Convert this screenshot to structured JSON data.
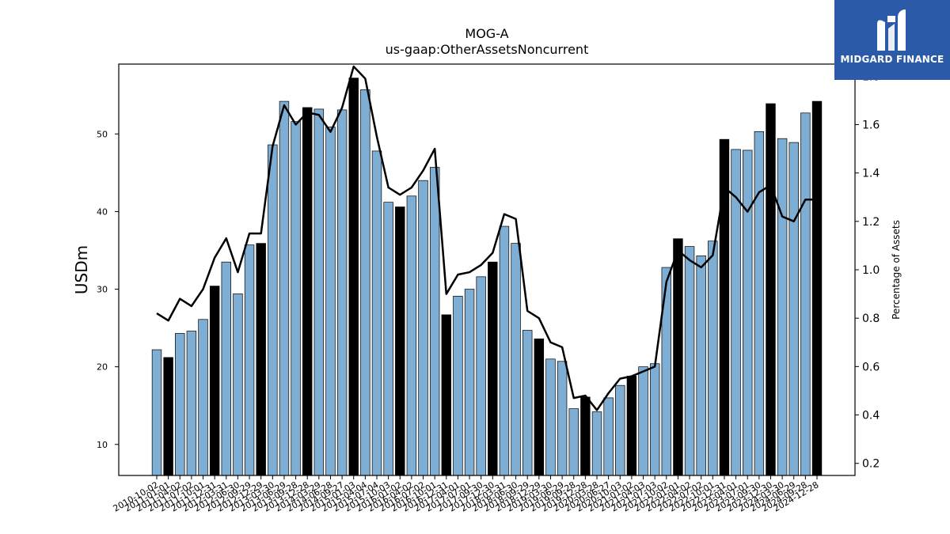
{
  "brand": {
    "name": "MIDGARD FINANCE",
    "bg_color": "#2b5aa8",
    "icon": "midgard-logo-icon"
  },
  "chart_data": {
    "type": "bar",
    "title": "MOG-A",
    "subtitle": "us-gaap:OtherAssetsNoncurrent",
    "ylabel": "USDm",
    "y2label": "Percentage of Assets",
    "ylim": [
      6,
      59
    ],
    "y2lim": [
      0.15,
      1.85
    ],
    "yticks": [
      10,
      20,
      30,
      40,
      50
    ],
    "y2ticks": [
      0.2,
      0.4,
      0.6,
      0.8,
      1.0,
      1.2,
      1.4,
      1.6,
      1.8
    ],
    "bar_color": "#7eaed3",
    "highlight_color": "#000000",
    "line_color": "#000000",
    "categories": [
      "2010-10-02",
      "2011-01-01",
      "2011-04-02",
      "2011-07-02",
      "2011-10-01",
      "2011-12-31",
      "2012-03-31",
      "2012-06-30",
      "2012-09-29",
      "2012-12-29",
      "2013-03-30",
      "2013-06-29",
      "2013-09-28",
      "2013-12-28",
      "2014-03-29",
      "2014-06-28",
      "2014-09-27",
      "2015-01-03",
      "2015-04-04",
      "2015-07-04",
      "2015-10-03",
      "2016-01-02",
      "2016-04-02",
      "2016-07-02",
      "2016-10-01",
      "2016-12-31",
      "2017-04-01",
      "2017-07-01",
      "2017-09-30",
      "2017-12-30",
      "2018-03-31",
      "2018-06-30",
      "2018-09-29",
      "2018-12-29",
      "2019-03-30",
      "2019-06-29",
      "2019-09-28",
      "2019-12-28",
      "2020-03-28",
      "2020-06-27",
      "2020-10-03",
      "2021-01-02",
      "2021-04-03",
      "2021-07-03",
      "2021-10-02",
      "2022-01-01",
      "2022-04-02",
      "2022-07-02",
      "2022-10-01",
      "2022-12-31",
      "2023-04-01",
      "2023-07-01",
      "2023-09-30",
      "2023-12-30",
      "2024-03-30",
      "2024-06-29",
      "2024-09-28",
      "2024-12-28"
    ],
    "values": [
      22.2,
      21.2,
      24.3,
      24.6,
      26.1,
      30.4,
      33.5,
      29.4,
      35.7,
      35.9,
      48.6,
      54.2,
      51.6,
      53.4,
      53.2,
      50.9,
      53.1,
      57.2,
      55.7,
      47.8,
      41.2,
      40.6,
      42.0,
      44.0,
      45.7,
      26.7,
      29.1,
      30.0,
      31.6,
      33.5,
      38.1,
      35.9,
      24.7,
      23.6,
      21.0,
      20.7,
      14.6,
      16.1,
      14.2,
      16.0,
      17.6,
      18.8,
      20.0,
      20.4,
      32.8,
      36.5,
      35.5,
      34.3,
      36.2,
      49.3,
      48.0,
      47.9,
      50.3,
      53.9,
      49.4,
      48.9,
      52.7,
      54.2
    ],
    "highlight": [
      false,
      true,
      false,
      false,
      false,
      true,
      false,
      false,
      false,
      true,
      false,
      false,
      false,
      true,
      false,
      false,
      false,
      true,
      false,
      false,
      false,
      true,
      false,
      false,
      false,
      true,
      false,
      false,
      false,
      true,
      false,
      false,
      false,
      true,
      false,
      false,
      false,
      true,
      false,
      false,
      false,
      true,
      false,
      false,
      false,
      true,
      false,
      false,
      false,
      true,
      false,
      false,
      false,
      true,
      false,
      false,
      false,
      true
    ],
    "pct_assets": [
      0.82,
      0.79,
      0.88,
      0.85,
      0.92,
      1.05,
      1.13,
      0.99,
      1.15,
      1.15,
      1.51,
      1.68,
      1.6,
      1.65,
      1.64,
      1.57,
      1.67,
      1.84,
      1.79,
      1.55,
      1.34,
      1.31,
      1.34,
      1.41,
      1.5,
      0.9,
      0.98,
      0.99,
      1.02,
      1.07,
      1.23,
      1.21,
      0.83,
      0.8,
      0.7,
      0.68,
      0.47,
      0.48,
      0.42,
      0.49,
      0.55,
      0.56,
      0.58,
      0.6,
      0.95,
      1.08,
      1.04,
      1.01,
      1.06,
      1.34,
      1.3,
      1.24,
      1.32,
      1.35,
      1.22,
      1.2,
      1.29,
      1.29
    ],
    "legend": "none",
    "grid": false
  }
}
